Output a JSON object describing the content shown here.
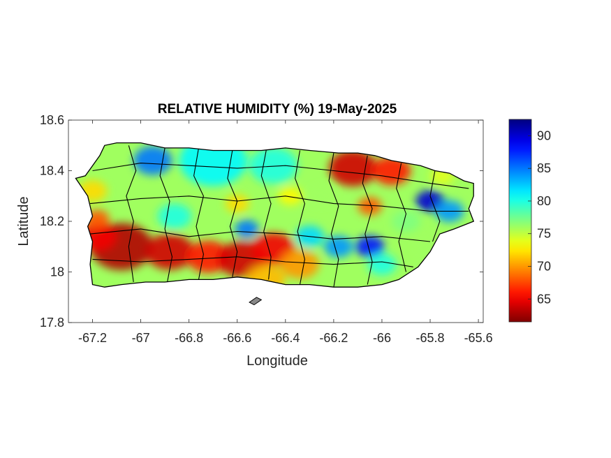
{
  "chart_data": {
    "type": "heatmap",
    "title": "RELATIVE HUMIDITY (%) 19-May-2025",
    "xlabel": "Longitude",
    "ylabel": "Latitude",
    "xlim": [
      -67.3,
      -65.58
    ],
    "ylim": [
      17.8,
      18.6
    ],
    "xticks": [
      -67.2,
      -67,
      -66.8,
      -66.6,
      -66.4,
      -66.2,
      -66,
      -65.8,
      -65.6
    ],
    "xtick_labels": [
      "-67.2",
      "-67",
      "-66.8",
      "-66.6",
      "-66.4",
      "-66.2",
      "-66",
      "-65.8",
      "-65.6"
    ],
    "yticks": [
      17.8,
      18,
      18.2,
      18.4,
      18.6
    ],
    "ytick_labels": [
      "17.8",
      "18",
      "18.2",
      "18.4",
      "18.6"
    ],
    "colorbar": {
      "range": [
        61.5,
        92.5
      ],
      "ticks": [
        65,
        70,
        75,
        80,
        85,
        90
      ],
      "tick_labels": [
        "65",
        "70",
        "75",
        "80",
        "85",
        "90"
      ],
      "colormap": "jet-reversed"
    },
    "background_value": 76,
    "regions": [
      {
        "lon": -67.08,
        "lat": 18.1,
        "value": 63,
        "r": 0.13
      },
      {
        "lon": -67.18,
        "lat": 18.14,
        "value": 65,
        "r": 0.08
      },
      {
        "lon": -66.88,
        "lat": 18.08,
        "value": 64,
        "r": 0.1
      },
      {
        "lon": -66.72,
        "lat": 18.06,
        "value": 66,
        "r": 0.09
      },
      {
        "lon": -66.58,
        "lat": 18.05,
        "value": 64,
        "r": 0.1
      },
      {
        "lon": -66.45,
        "lat": 18.09,
        "value": 65,
        "r": 0.09
      },
      {
        "lon": -66.34,
        "lat": 18.03,
        "value": 70,
        "r": 0.08
      },
      {
        "lon": -66.48,
        "lat": 17.97,
        "value": 71,
        "r": 0.08
      },
      {
        "lon": -66.12,
        "lat": 18.41,
        "value": 64,
        "r": 0.1
      },
      {
        "lon": -65.96,
        "lat": 18.4,
        "value": 66,
        "r": 0.08
      },
      {
        "lon": -66.05,
        "lat": 18.26,
        "value": 68,
        "r": 0.05
      },
      {
        "lon": -66.95,
        "lat": 18.44,
        "value": 85,
        "r": 0.08
      },
      {
        "lon": -66.7,
        "lat": 18.44,
        "value": 81,
        "r": 0.14
      },
      {
        "lon": -66.45,
        "lat": 18.42,
        "value": 80,
        "r": 0.1
      },
      {
        "lon": -65.8,
        "lat": 18.28,
        "value": 90,
        "r": 0.06
      },
      {
        "lon": -65.72,
        "lat": 18.24,
        "value": 84,
        "r": 0.06
      },
      {
        "lon": -66.05,
        "lat": 18.1,
        "value": 88,
        "r": 0.06
      },
      {
        "lon": -66.18,
        "lat": 18.1,
        "value": 84,
        "r": 0.06
      },
      {
        "lon": -66.56,
        "lat": 18.17,
        "value": 85,
        "r": 0.05
      },
      {
        "lon": -66.3,
        "lat": 18.14,
        "value": 82,
        "r": 0.06
      },
      {
        "lon": -66.0,
        "lat": 18.03,
        "value": 80,
        "r": 0.06
      },
      {
        "lon": -66.86,
        "lat": 18.22,
        "value": 80,
        "r": 0.07
      },
      {
        "lon": -67.2,
        "lat": 18.32,
        "value": 72,
        "r": 0.06
      },
      {
        "lon": -67.18,
        "lat": 18.21,
        "value": 68,
        "r": 0.05
      },
      {
        "lon": -66.6,
        "lat": 18.27,
        "value": 72,
        "r": 0.05
      },
      {
        "lon": -66.38,
        "lat": 18.3,
        "value": 73,
        "r": 0.05
      },
      {
        "lon": -65.9,
        "lat": 18.2,
        "value": 77,
        "r": 0.06
      },
      {
        "lon": -65.75,
        "lat": 18.38,
        "value": 74,
        "r": 0.05
      },
      {
        "lon": -65.8,
        "lat": 18.1,
        "value": 76,
        "r": 0.06
      },
      {
        "lon": -66.25,
        "lat": 18.3,
        "value": 76,
        "r": 0.05
      }
    ],
    "coastline": [
      [
        -67.27,
        18.37
      ],
      [
        -67.23,
        18.38
      ],
      [
        -67.17,
        18.46
      ],
      [
        -67.15,
        18.5
      ],
      [
        -67.1,
        18.51
      ],
      [
        -67.0,
        18.51
      ],
      [
        -66.9,
        18.49
      ],
      [
        -66.8,
        18.49
      ],
      [
        -66.7,
        18.48
      ],
      [
        -66.6,
        18.48
      ],
      [
        -66.5,
        18.48
      ],
      [
        -66.4,
        18.49
      ],
      [
        -66.3,
        18.48
      ],
      [
        -66.18,
        18.47
      ],
      [
        -66.1,
        18.47
      ],
      [
        -66.03,
        18.46
      ],
      [
        -65.96,
        18.44
      ],
      [
        -65.9,
        18.43
      ],
      [
        -65.84,
        18.42
      ],
      [
        -65.78,
        18.4
      ],
      [
        -65.72,
        18.39
      ],
      [
        -65.66,
        18.36
      ],
      [
        -65.62,
        18.35
      ],
      [
        -65.62,
        18.3
      ],
      [
        -65.64,
        18.25
      ],
      [
        -65.62,
        18.2
      ],
      [
        -65.7,
        18.17
      ],
      [
        -65.76,
        18.15
      ],
      [
        -65.8,
        18.08
      ],
      [
        -65.85,
        18.02
      ],
      [
        -65.93,
        17.97
      ],
      [
        -66.0,
        17.95
      ],
      [
        -66.1,
        17.94
      ],
      [
        -66.2,
        17.94
      ],
      [
        -66.3,
        17.95
      ],
      [
        -66.4,
        17.95
      ],
      [
        -66.5,
        17.97
      ],
      [
        -66.6,
        17.98
      ],
      [
        -66.7,
        17.97
      ],
      [
        -66.8,
        17.97
      ],
      [
        -66.9,
        17.96
      ],
      [
        -66.98,
        17.96
      ],
      [
        -67.08,
        17.95
      ],
      [
        -67.15,
        17.94
      ],
      [
        -67.2,
        17.95
      ],
      [
        -67.21,
        18.03
      ],
      [
        -67.2,
        18.12
      ],
      [
        -67.22,
        18.18
      ],
      [
        -67.2,
        18.22
      ],
      [
        -67.22,
        18.3
      ],
      [
        -67.27,
        18.37
      ]
    ],
    "islet": [
      [
        -66.55,
        17.88
      ],
      [
        -66.52,
        17.9
      ],
      [
        -66.5,
        17.89
      ],
      [
        -66.53,
        17.87
      ],
      [
        -66.55,
        17.88
      ]
    ]
  }
}
